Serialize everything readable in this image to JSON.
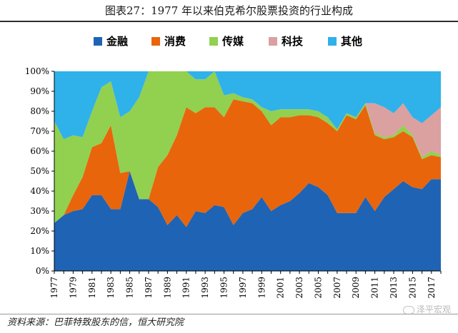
{
  "figure": {
    "title": "图表27：1977 年以来伯克希尔股票投资的行业构成",
    "source": "资料来源：巴菲特致股东的信，恒大研究院",
    "watermark": "泽平宏观"
  },
  "chart_data": {
    "type": "area",
    "stacked": true,
    "normalized": true,
    "x": [
      1977,
      1978,
      1979,
      1980,
      1981,
      1982,
      1983,
      1984,
      1985,
      1986,
      1987,
      1988,
      1989,
      1990,
      1991,
      1992,
      1993,
      1994,
      1995,
      1996,
      1997,
      1998,
      1999,
      2000,
      2001,
      2002,
      2003,
      2004,
      2005,
      2006,
      2007,
      2008,
      2009,
      2010,
      2011,
      2012,
      2013,
      2014,
      2015,
      2016,
      2017,
      2018
    ],
    "x_tick_labels": [
      "1977",
      "1979",
      "1981",
      "1983",
      "1985",
      "1987",
      "1989",
      "1991",
      "1993",
      "1995",
      "1997",
      "1999",
      "2001",
      "2003",
      "2005",
      "2007",
      "2009",
      "2011",
      "2013",
      "2015",
      "2017"
    ],
    "y_tick_labels": [
      "0%",
      "10%",
      "20%",
      "30%",
      "40%",
      "50%",
      "60%",
      "70%",
      "80%",
      "90%",
      "100%"
    ],
    "ylim": [
      0,
      100
    ],
    "legend_position": "top",
    "series": [
      {
        "name": "金融",
        "color": "#1f63b5",
        "values": [
          24,
          28,
          30,
          31,
          38,
          38,
          31,
          31,
          50,
          36,
          36,
          32,
          23,
          28,
          22,
          30,
          29,
          33,
          32,
          23,
          29,
          31,
          37,
          30,
          33,
          35,
          39,
          44,
          42,
          38,
          29,
          29,
          29,
          37,
          30,
          37,
          41,
          45,
          42,
          41,
          46,
          46
        ]
      },
      {
        "name": "消费",
        "color": "#e8650c",
        "values": [
          0,
          0,
          8,
          16,
          24,
          26,
          42,
          18,
          0,
          0,
          0,
          20,
          35,
          40,
          60,
          49,
          53,
          49,
          45,
          63,
          56,
          53,
          43,
          43,
          44,
          42,
          39,
          34,
          35,
          36,
          41,
          49,
          47,
          46,
          38,
          29,
          26,
          25,
          25,
          15,
          12,
          11
        ]
      },
      {
        "name": "传媒",
        "color": "#92d050",
        "values": [
          51,
          38,
          30,
          20,
          18,
          28,
          22,
          28,
          30,
          51,
          64,
          48,
          42,
          32,
          18,
          17,
          14,
          18,
          11,
          3,
          2,
          2,
          2,
          7,
          4,
          4,
          3,
          3,
          3,
          3,
          1,
          1,
          1,
          1,
          1,
          1,
          1,
          3,
          1,
          1,
          2,
          1
        ]
      },
      {
        "name": "科技",
        "color": "#dba0a0",
        "values": [
          0,
          0,
          0,
          0,
          0,
          0,
          0,
          0,
          0,
          0,
          0,
          0,
          0,
          0,
          0,
          0,
          0,
          0,
          0,
          0,
          0,
          0,
          0,
          0,
          0,
          0,
          0,
          0,
          0,
          0,
          0,
          0,
          0,
          0,
          15,
          15,
          11,
          11,
          9,
          17,
          18,
          24
        ]
      },
      {
        "name": "其他",
        "color": "#2fb1ea",
        "values": [
          25,
          34,
          32,
          33,
          20,
          8,
          5,
          23,
          20,
          13,
          0,
          0,
          0,
          0,
          0,
          4,
          4,
          0,
          12,
          11,
          13,
          14,
          18,
          20,
          19,
          19,
          19,
          19,
          20,
          23,
          29,
          21,
          23,
          16,
          16,
          18,
          21,
          16,
          23,
          26,
          22,
          18
        ]
      }
    ]
  }
}
